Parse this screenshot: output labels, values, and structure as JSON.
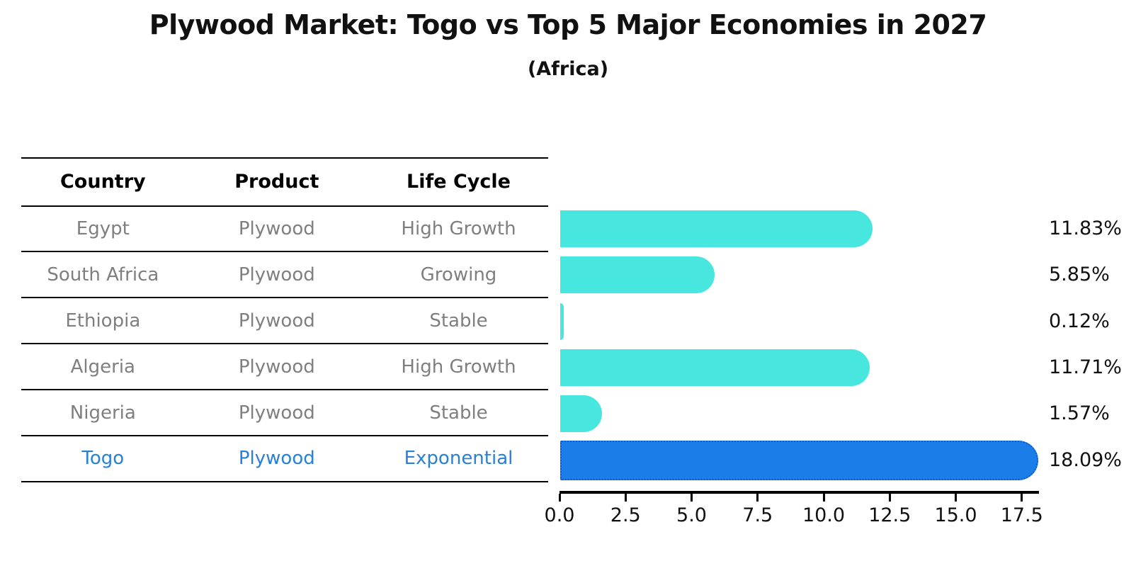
{
  "title": "Plywood Market: Togo vs Top 5 Major Economies in 2027",
  "subtitle": "(Africa)",
  "table": {
    "headers": [
      "Country",
      "Product",
      "Life Cycle"
    ]
  },
  "rows": [
    {
      "country": "Egypt",
      "product": "Plywood",
      "life_cycle": "High Growth",
      "value": 11.83,
      "value_label": "11.83%",
      "highlight": false
    },
    {
      "country": "South Africa",
      "product": "Plywood",
      "life_cycle": "Growing",
      "value": 5.85,
      "value_label": "5.85%",
      "highlight": false
    },
    {
      "country": "Ethiopia",
      "product": "Plywood",
      "life_cycle": "Stable",
      "value": 0.12,
      "value_label": "0.12%",
      "highlight": false
    },
    {
      "country": "Algeria",
      "product": "Plywood",
      "life_cycle": "High Growth",
      "value": 11.71,
      "value_label": "11.71%",
      "highlight": false
    },
    {
      "country": "Nigeria",
      "product": "Plywood",
      "life_cycle": "Stable",
      "value": 1.57,
      "value_label": "1.57%",
      "highlight": false
    },
    {
      "country": "Togo",
      "product": "Plywood",
      "life_cycle": "Exponential",
      "value": 18.09,
      "value_label": "18.09%",
      "highlight": true
    }
  ],
  "chart_data": {
    "type": "bar",
    "orientation": "horizontal",
    "title": "Plywood Market: Togo vs Top 5 Major Economies in 2027",
    "subtitle": "(Africa)",
    "categories": [
      "Egypt",
      "South Africa",
      "Ethiopia",
      "Algeria",
      "Nigeria",
      "Togo"
    ],
    "values": [
      11.83,
      5.85,
      0.12,
      11.71,
      1.57,
      18.09
    ],
    "value_labels": [
      "11.83%",
      "5.85%",
      "0.12%",
      "11.71%",
      "1.57%",
      "18.09%"
    ],
    "xticks": [
      0,
      2.5,
      5,
      7.5,
      10,
      12.5,
      15,
      17.5
    ],
    "xtick_labels": [
      "0.0",
      "2.5",
      "5.0",
      "7.5",
      "10.0",
      "12.5",
      "15.0",
      "17.5"
    ],
    "xlim": [
      0,
      18.09
    ],
    "grid": false,
    "legend": false,
    "highlight_category": "Togo"
  },
  "colors": {
    "background": "#ffffff",
    "bar_default": "#47e6de",
    "bar_highlight": "#1a7de8",
    "highlight_border": "#0c5bd4",
    "highlight_text": "#2980d9",
    "row_text": "#7f7f7f",
    "header_text": "#000000",
    "axis": "#000000"
  }
}
